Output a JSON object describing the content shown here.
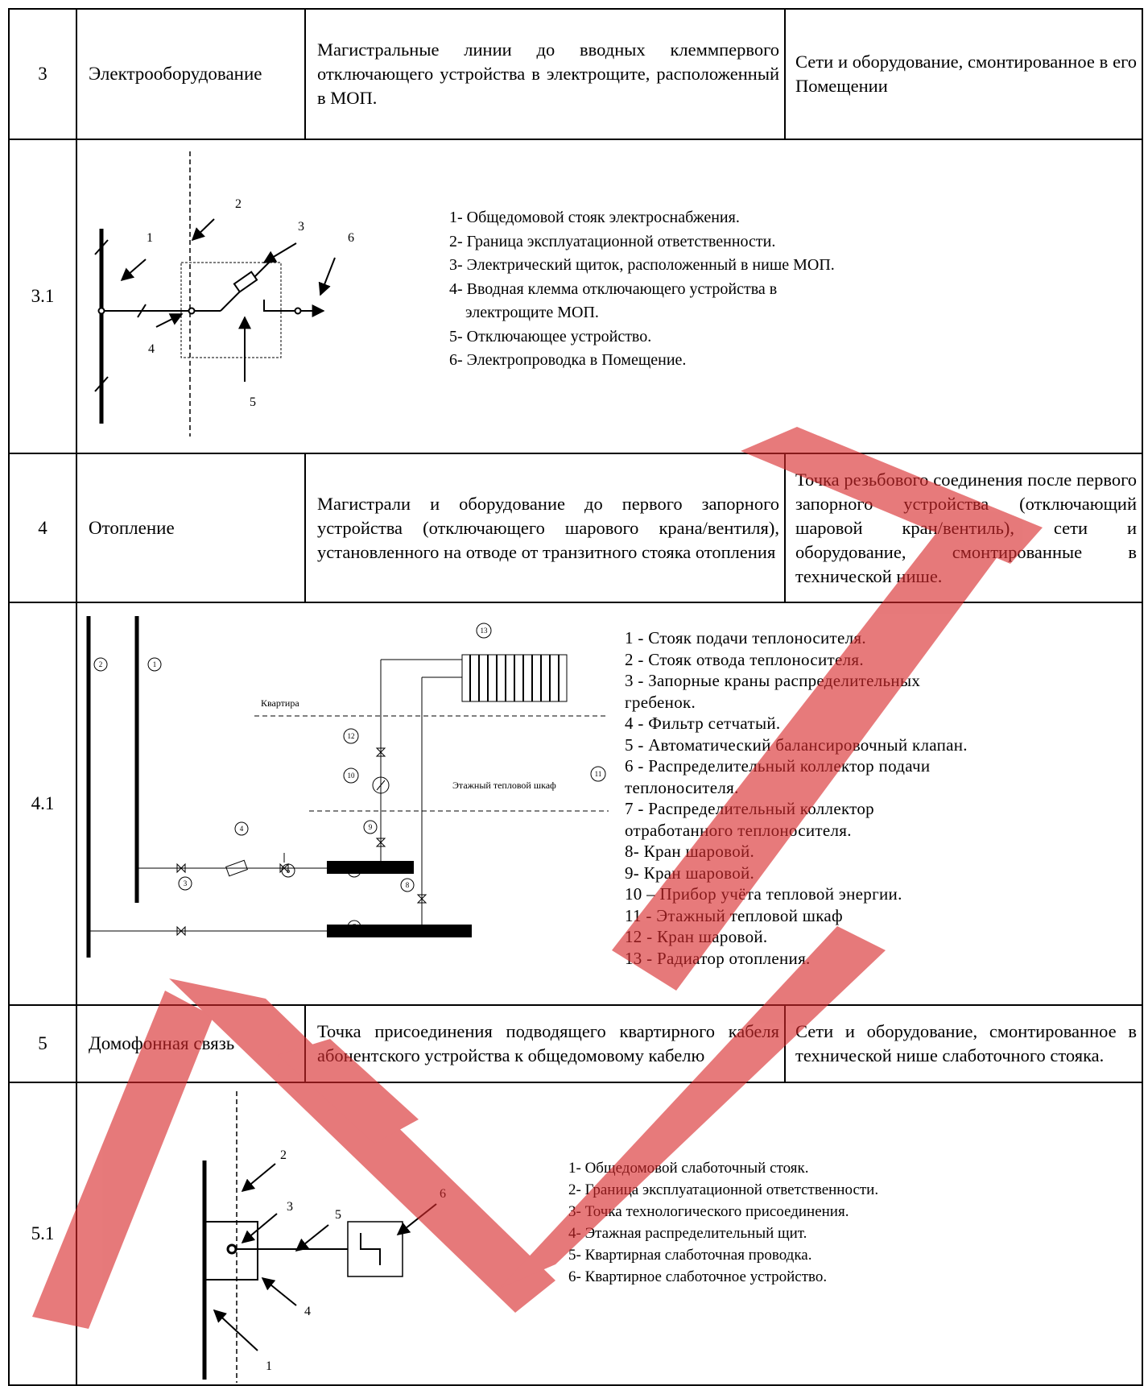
{
  "rows": [
    {
      "num": "3",
      "name": "Электрооборудование",
      "col3": "Магистральные линии до вводных клеммпервого отключающего устройства в электрощите, расположенный в МОП.",
      "col4": "Сети и оборудование, смонтированное в его Помещении"
    },
    {
      "num": "3.1",
      "diagram_labels": [
        "1",
        "2",
        "3",
        "4",
        "5",
        "6"
      ],
      "legend": [
        "1- Общедомовой стояк электроснабжения.",
        "2- Граница эксплуатационной ответственности.",
        "3- Электрический щиток, расположенный в нише МОП.",
        "4- Вводная клемма отключающего устройства в",
        "электрощите МОП.",
        "5- Отключающее устройство.",
        "6- Электропроводка в Помещение."
      ]
    },
    {
      "num": "4",
      "name": "Отопление",
      "col3": "Магистрали и оборудование до первого запорного устройства (отключающего шарового крана/вентиля), установленного на отводе от транзитного стояка отопления",
      "col4": "Точка резьбового соединения после первого запорного устройства (отключающий шаровой кран/вентиль), сети и оборудование, смонтированные в технической нише."
    },
    {
      "num": "4.1",
      "diagram_texts": {
        "apartment": "Квартира",
        "cabinet": "Этажный тепловой шкаф"
      },
      "diagram_labels": [
        "1",
        "2",
        "3",
        "4",
        "5",
        "6",
        "7",
        "8",
        "9",
        "10",
        "11",
        "12",
        "13"
      ],
      "legend": [
        "1 - Стояк подачи теплоносителя.",
        "2 - Стояк отвода теплоносителя.",
        "3 - Запорные краны распределительных",
        "гребенок.",
        "4 - Фильтр сетчатый.",
        "5 - Автоматический балансировочный клапан.",
        "6 - Распределительный коллектор подачи",
        "теплоносителя.",
        "7 - Распределительный коллектор",
        "отработанного теплоносителя.",
        "8- Кран шаровой.",
        "9- Кран шаровой.",
        "10 – Прибор учёта тепловой энергии.",
        "11 - Этажный тепловой шкаф",
        "12 - Кран шаровой.",
        "13 - Радиатор отопления."
      ]
    },
    {
      "num": "5",
      "name": "Домофонная связь",
      "col3": "Точка присоединения подводящего квартирного кабеля абонентского устройства к общедомовому кабелю",
      "col4": "Сети и оборудование, смонтированное в технической нише слаботочного стояка."
    },
    {
      "num": "5.1",
      "diagram_labels": [
        "1",
        "2",
        "3",
        "4",
        "5",
        "6"
      ],
      "legend": [
        "1- Общедомовой слаботочный стояк.",
        "2- Граница эксплуатационной ответственности.",
        "3- Точка технологического присоединения.",
        "4- Этажная распределительный щит.",
        "5- Квартирная слаботочная проводка.",
        "6- Квартирное слаботочное устройство."
      ]
    }
  ],
  "watermark": {
    "color": "#d8282a",
    "shape": "stamp-letters"
  }
}
